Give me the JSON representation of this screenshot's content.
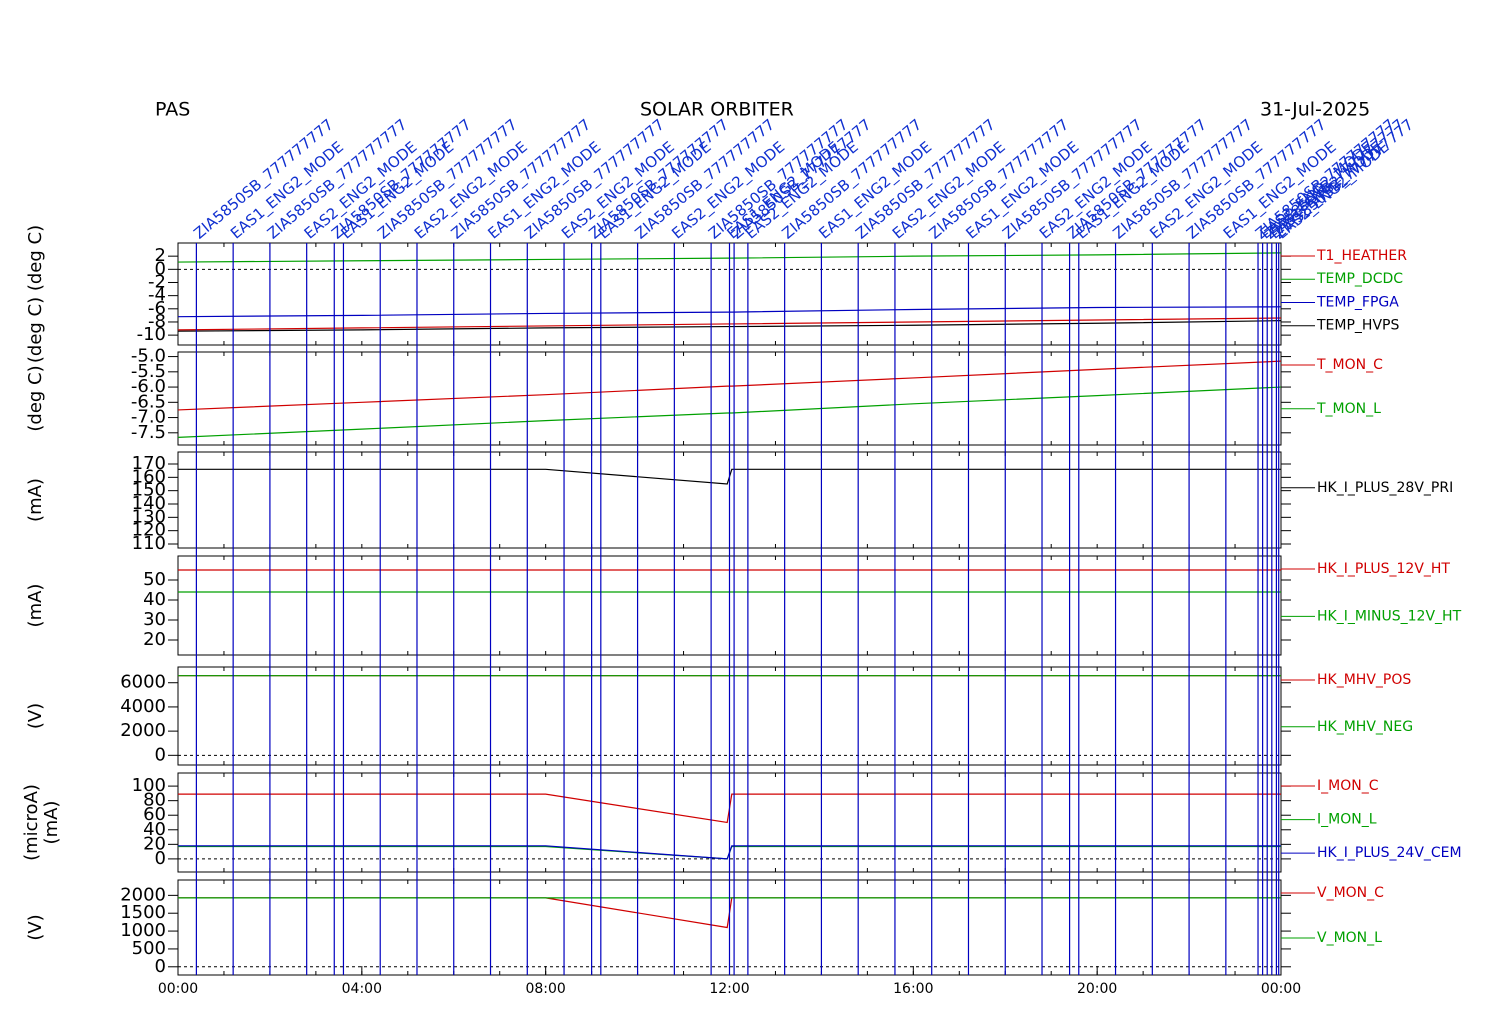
{
  "header": {
    "instrument": "PAS",
    "mission": "SOLAR ORBITER",
    "date": "31-Jul-2025"
  },
  "events": {
    "times": [
      0.4,
      1.2,
      2.0,
      2.8,
      3.4,
      3.6,
      4.4,
      5.2,
      6.0,
      6.8,
      7.6,
      8.4,
      9.0,
      9.2,
      10.0,
      10.8,
      11.6,
      12.0,
      12.1,
      12.4,
      13.2,
      14.0,
      14.8,
      15.6,
      16.4,
      17.2,
      18.0,
      18.8,
      19.4,
      19.6,
      20.4,
      21.2,
      22.0,
      22.8,
      23.5,
      23.6,
      23.7,
      23.8,
      23.9,
      23.95
    ],
    "labels": [
      "ZIA5850SB_777777777",
      "EAS1_ENG2_MODE",
      "ZIA5850SB_777777777",
      "EAS2_ENG2_MODE",
      "ZIA5850SB_777777777",
      "EAS1_ENG2_MODE",
      "ZIA5850SB_777777777",
      "EAS2_ENG2_MODE",
      "ZIA5850SB_777777777",
      "EAS1_ENG2_MODE",
      "ZIA5850SB_777777777",
      "EAS2_ENG2_MODE",
      "ZIA5850SB_777777777",
      "EAS1_ENG2_MODE",
      "ZIA5850SB_777777777",
      "EAS2_ENG2_MODE",
      "ZIA5850SB_777777777",
      "EAS1_ENG2_MODE",
      "ZIA5850SB_777777777",
      "EAS2_ENG2_MODE",
      "ZIA5850SB_777777777",
      "EAS1_ENG2_MODE",
      "ZIA5850SB_777777777",
      "EAS2_ENG2_MODE",
      "ZIA5850SB_777777777",
      "EAS1_ENG2_MODE",
      "ZIA5850SB_777777777",
      "EAS2_ENG2_MODE",
      "ZIA5850SB_777777777",
      "EAS1_ENG2_MODE",
      "ZIA5850SB_777777777",
      "EAS2_ENG2_MODE",
      "ZIA5850SB_777777777",
      "EAS1_ENG2_MODE",
      "ZIA5850SB_777777777",
      "EAS2_ENG2_MODE",
      "ZIA5850SB_777777777",
      "EAS1_ENG2_MODE",
      "ZIA5850SB_777777777",
      "EAS2_ENG2_MODE"
    ]
  },
  "chart_data": [
    {
      "type": "line",
      "ylabel": "(deg C)   (deg C)",
      "x": [
        0,
        4,
        8,
        11.95,
        12.05,
        16,
        20,
        24
      ],
      "xlim": [
        0,
        24
      ],
      "ylim": [
        -11.5,
        4
      ],
      "yticks": [
        2,
        0,
        -2,
        -4,
        -6,
        -8,
        -10
      ],
      "zero_line": true,
      "series": [
        {
          "name": "T1_HEATHER",
          "color": "#d00000",
          "values": [
            -9.2,
            -8.9,
            -8.6,
            -8.3,
            -8.3,
            -8.0,
            -7.7,
            -7.4
          ]
        },
        {
          "name": "TEMP_DCDC",
          "color": "#00a000",
          "values": [
            1.1,
            1.3,
            1.5,
            1.7,
            1.7,
            2.0,
            2.2,
            2.5
          ]
        },
        {
          "name": "TEMP_FPGA",
          "color": "#0000c0",
          "values": [
            -7.2,
            -7.0,
            -6.7,
            -6.5,
            -6.5,
            -6.1,
            -5.8,
            -5.7
          ]
        },
        {
          "name": "TEMP_HVPS",
          "color": "#000000",
          "values": [
            -9.4,
            -9.2,
            -8.9,
            -8.7,
            -8.7,
            -8.5,
            -8.2,
            -7.8
          ]
        }
      ]
    },
    {
      "type": "line",
      "ylabel": "(deg C)",
      "x": [
        0,
        4,
        8,
        11.95,
        12.05,
        16,
        20,
        24
      ],
      "xlim": [
        0,
        24
      ],
      "ylim": [
        -7.9,
        -4.85
      ],
      "yticks": [
        {
          "value": -5,
          "label": "-5.0"
        },
        -5.5,
        {
          "value": -6,
          "label": "-6.0"
        },
        -6.5,
        {
          "value": -7,
          "label": "-7.0"
        },
        -7.5
      ],
      "zero_line": false,
      "series": [
        {
          "name": "T_MON_C",
          "color": "#d00000",
          "values": [
            -6.75,
            -6.5,
            -6.25,
            -5.97,
            -5.97,
            -5.7,
            -5.42,
            -5.15
          ]
        },
        {
          "name": "T_MON_L",
          "color": "#00a000",
          "values": [
            -7.65,
            -7.38,
            -7.1,
            -6.85,
            -6.85,
            -6.55,
            -6.28,
            -6.0
          ]
        }
      ]
    },
    {
      "type": "line",
      "ylabel": "(mA)",
      "x": [
        0,
        4,
        8,
        11.95,
        12.05,
        16,
        20,
        24
      ],
      "xlim": [
        0,
        24
      ],
      "ylim": [
        107,
        179
      ],
      "yticks": [
        170,
        160,
        150,
        140,
        130,
        120,
        110
      ],
      "zero_line": false,
      "series": [
        {
          "name": "HK_I_PLUS_28V_PRI",
          "color": "#000000",
          "values": [
            166,
            166,
            166,
            155,
            166,
            166,
            166,
            166
          ]
        }
      ]
    },
    {
      "type": "line",
      "ylabel": "(mA)",
      "x": [
        0,
        4,
        8,
        11.95,
        12.05,
        16,
        20,
        24
      ],
      "xlim": [
        0,
        24
      ],
      "ylim": [
        12.5,
        62
      ],
      "yticks": [
        50,
        40,
        30,
        20
      ],
      "zero_line": false,
      "series": [
        {
          "name": "HK_I_PLUS_12V_HT",
          "color": "#d00000",
          "values": [
            55,
            55,
            55,
            55,
            55,
            55,
            55,
            55
          ]
        },
        {
          "name": "HK_I_MINUS_12V_HT",
          "color": "#00a000",
          "values": [
            44,
            44,
            44,
            44,
            44,
            44,
            44,
            44
          ]
        }
      ]
    },
    {
      "type": "line",
      "ylabel": "(V)",
      "x": [
        0,
        4,
        8,
        11.95,
        12.05,
        16,
        20,
        24
      ],
      "xlim": [
        0,
        24
      ],
      "ylim": [
        -800,
        7300
      ],
      "yticks": [
        6000,
        4000,
        2000,
        0
      ],
      "zero_line": true,
      "series": [
        {
          "name": "HK_MHV_POS",
          "color": "#d00000",
          "values": [
            6580,
            6580,
            6580,
            6580,
            6580,
            6580,
            6580,
            6580
          ]
        },
        {
          "name": "HK_MHV_NEG",
          "color": "#00a000",
          "values": [
            6580,
            6580,
            6580,
            6580,
            6580,
            6580,
            6580,
            6580
          ]
        }
      ]
    },
    {
      "type": "line",
      "ylabel": "(microA)",
      "ylabel2": "(mA)",
      "x": [
        0,
        4,
        8,
        11.95,
        12.05,
        16,
        20,
        24
      ],
      "xlim": [
        0,
        24
      ],
      "ylim": [
        -18,
        118
      ],
      "yticks": [
        100,
        80,
        60,
        40,
        20,
        0
      ],
      "zero_line": true,
      "series": [
        {
          "name": "I_MON_C",
          "color": "#d00000",
          "values": [
            89,
            89,
            89,
            50,
            89,
            89,
            89,
            89
          ]
        },
        {
          "name": "I_MON_L",
          "color": "#00a000",
          "values": [
            17,
            17,
            17,
            0,
            17,
            17,
            17,
            17
          ]
        },
        {
          "name": "HK_I_PLUS_24V_CEM",
          "color": "#0000c0",
          "values": [
            18,
            18,
            18,
            0,
            18,
            18,
            18,
            18
          ]
        }
      ]
    },
    {
      "type": "line",
      "ylabel": "(V)",
      "x": [
        0,
        4,
        8,
        11.95,
        12.05,
        16,
        20,
        24
      ],
      "xlim": [
        0,
        24
      ],
      "ylim": [
        -230,
        2430
      ],
      "yticks": [
        2000,
        1500,
        1000,
        500,
        0
      ],
      "zero_line": true,
      "xticks": [
        {
          "value": 0,
          "label": "00:00"
        },
        {
          "value": 4,
          "label": "04:00"
        },
        {
          "value": 8,
          "label": "08:00"
        },
        {
          "value": 12,
          "label": "12:00"
        },
        {
          "value": 16,
          "label": "16:00"
        },
        {
          "value": 20,
          "label": "20:00"
        },
        {
          "value": 24,
          "label": "00:00"
        }
      ],
      "series": [
        {
          "name": "V_MON_C",
          "color": "#d00000",
          "values": [
            1930,
            1930,
            1930,
            1100,
            1930,
            1930,
            1930,
            1930
          ]
        },
        {
          "name": "V_MON_L",
          "color": "#00a000",
          "values": [
            1930,
            1930,
            1930,
            1930,
            1930,
            1930,
            1930,
            1930
          ]
        }
      ]
    }
  ]
}
